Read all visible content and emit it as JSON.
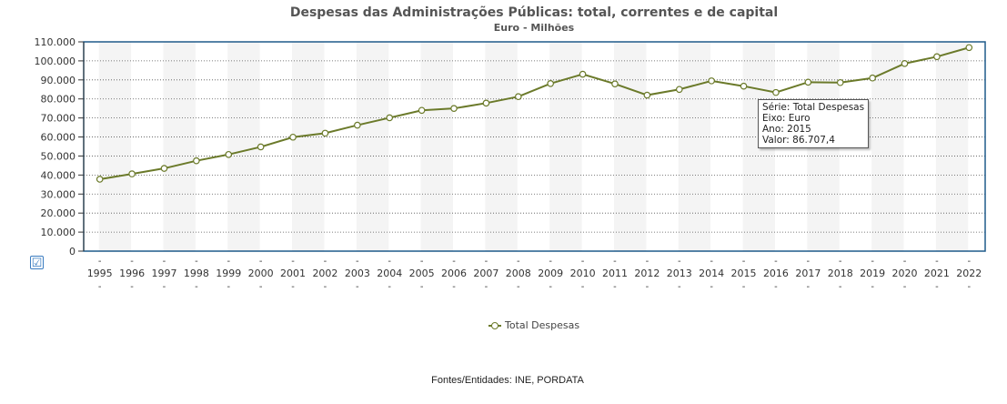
{
  "chart_data": {
    "type": "line",
    "title": "Despesas das Administrações Públicas: total, correntes e de capital",
    "subtitle": "Euro - Milhões",
    "categories": [
      "1995",
      "1996",
      "1997",
      "1998",
      "1999",
      "2000",
      "2001",
      "2002",
      "2003",
      "2004",
      "2005",
      "2006",
      "2007",
      "2008",
      "2009",
      "2010",
      "2011",
      "2012",
      "2013",
      "2014",
      "2015",
      "2016",
      "2017",
      "2018",
      "2019",
      "2020",
      "2021",
      "2022"
    ],
    "series": [
      {
        "name": "Total Despesas",
        "values": [
          37800,
          40600,
          43500,
          47500,
          50800,
          54800,
          59900,
          62000,
          66200,
          70100,
          74000,
          75000,
          77800,
          81200,
          88100,
          93000,
          87900,
          82000,
          85000,
          89500,
          86707.4,
          83400,
          88800,
          88600,
          91000,
          98600,
          102200,
          107000
        ]
      }
    ],
    "y_ticks": [
      "0",
      "10.000",
      "20.000",
      "30.000",
      "40.000",
      "50.000",
      "60.000",
      "70.000",
      "80.000",
      "90.000",
      "100.000",
      "110.000"
    ],
    "ylim": [
      0,
      110000
    ],
    "grid": true,
    "legend_position": "bottom-center",
    "line_color": "#6b7a2a"
  },
  "tooltip": {
    "serie": "Série: Total Despesas",
    "eixo": "Eixo: Euro",
    "ano": "Ano: 2015",
    "valor": "Valor: 86.707,4"
  },
  "legend": {
    "label": "Total Despesas"
  },
  "source": "Fontes/Entidades: INE, PORDATA",
  "checkbox": {
    "symbol": "☑"
  }
}
